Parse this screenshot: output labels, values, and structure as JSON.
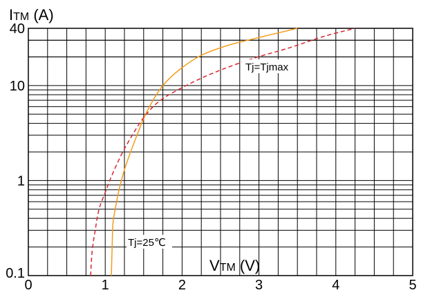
{
  "chart_data": {
    "type": "line",
    "y_axis_label": {
      "main": "I",
      "sub": "TM",
      "unit": " (A)"
    },
    "x_axis_label": {
      "main": "V",
      "sub": "TM",
      "unit": " (V)"
    },
    "x_scale": "linear",
    "y_scale": "log",
    "xlim": [
      0,
      5
    ],
    "ylim": [
      0.1,
      40
    ],
    "x_ticks": [
      "0",
      "1",
      "2",
      "3",
      "4",
      "5"
    ],
    "y_ticks": [
      {
        "value": 0.1,
        "label": "0.1"
      },
      {
        "value": 1,
        "label": "1"
      },
      {
        "value": 10,
        "label": "10"
      },
      {
        "value": 40,
        "label": "40"
      }
    ],
    "grid": true,
    "series": [
      {
        "name": "Tj=25℃",
        "color": "#f39c1a",
        "dash": "solid",
        "points": [
          [
            1.08,
            0.1
          ],
          [
            1.09,
            0.2
          ],
          [
            1.1,
            0.35
          ],
          [
            1.13,
            0.5
          ],
          [
            1.18,
            0.8
          ],
          [
            1.25,
            1.3
          ],
          [
            1.33,
            2.0
          ],
          [
            1.42,
            3.1
          ],
          [
            1.5,
            4.5
          ],
          [
            1.6,
            6.5
          ],
          [
            1.75,
            10
          ],
          [
            1.98,
            15
          ],
          [
            2.26,
            21
          ],
          [
            2.6,
            26.5
          ],
          [
            3.0,
            32
          ],
          [
            3.5,
            40
          ]
        ]
      },
      {
        "name": "Tj=Tjmax",
        "color": "#d7262e",
        "dash": "dashed",
        "points": [
          [
            0.81,
            0.1
          ],
          [
            0.83,
            0.18
          ],
          [
            0.87,
            0.3
          ],
          [
            0.92,
            0.5
          ],
          [
            1.0,
            0.75
          ],
          [
            1.08,
            1.1
          ],
          [
            1.2,
            1.8
          ],
          [
            1.33,
            2.8
          ],
          [
            1.5,
            4.6
          ],
          [
            1.7,
            6.8
          ],
          [
            2.0,
            9.5
          ],
          [
            2.4,
            13.5
          ],
          [
            2.9,
            19
          ],
          [
            3.4,
            25
          ],
          [
            3.85,
            33
          ],
          [
            4.25,
            40
          ]
        ]
      }
    ],
    "annotations": [
      {
        "text": "Tj=Tjmax",
        "x": 3.05,
        "y": 17
      },
      {
        "text": "Tj=25℃",
        "x": 1.36,
        "y": 0.33
      }
    ]
  }
}
